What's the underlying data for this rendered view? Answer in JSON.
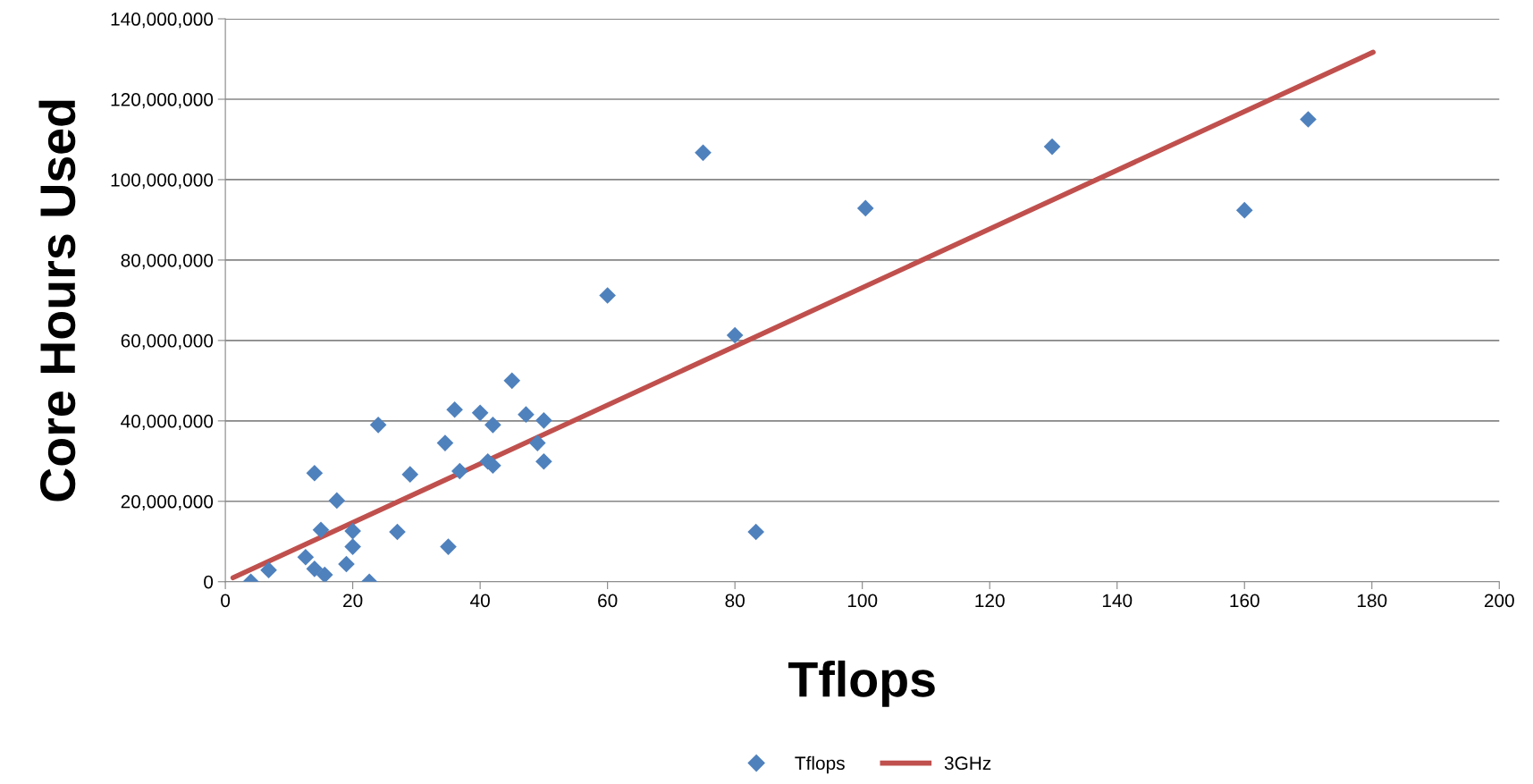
{
  "chart_data": {
    "type": "scatter",
    "xlabel": "Tflops",
    "ylabel": "Core Hours Used",
    "xlim": [
      0,
      200
    ],
    "xticks": [
      0,
      20,
      40,
      60,
      80,
      100,
      120,
      140,
      160,
      180,
      200
    ],
    "ylim": [
      0,
      140000000
    ],
    "yticks": [
      0,
      {
        "value": 20000000,
        "label": "20,000,000"
      },
      {
        "value": 40000000,
        "label": "40,000,000"
      },
      {
        "value": 60000000,
        "label": "60,000,000"
      },
      {
        "value": 80000000,
        "label": "80,000,000"
      },
      {
        "value": 100000000,
        "label": "100,000,000"
      },
      {
        "value": 120000000,
        "label": "120,000,000"
      },
      {
        "value": 140000000,
        "label": "140,000,000"
      }
    ],
    "grid": "y",
    "legend": "bottom",
    "marker": "diamond",
    "series": [
      {
        "name": "Tflops",
        "color": "#4f81bd",
        "x": [
          4,
          6.8,
          12.6,
          14,
          14,
          15,
          15.6,
          17.5,
          19,
          20,
          20,
          22.6,
          24,
          27,
          29,
          34.5,
          35,
          36,
          36.8,
          40,
          41.2,
          42,
          42,
          45,
          47.2,
          49,
          50,
          50,
          60,
          75,
          80,
          83.3,
          100.5,
          129.8,
          160,
          170
        ],
        "values": [
          0,
          2900000,
          6100000,
          27000000,
          3200000,
          12900000,
          1700000,
          20200000,
          4400000,
          12600000,
          8700000,
          0,
          39000000,
          12400000,
          26700000,
          34500000,
          8700000,
          42800000,
          27500000,
          42000000,
          29900000,
          39000000,
          28900000,
          50000000,
          41600000,
          34500000,
          40100000,
          29900000,
          71200000,
          106700000,
          61300000,
          12400000,
          92900000,
          108200000,
          92400000,
          115000000
        ]
      },
      {
        "name": "3GHz",
        "color": "#c0504d",
        "type": "line",
        "marker": "none",
        "x": [
          1.2,
          180.2
        ],
        "values": [
          1000000,
          131700000
        ]
      }
    ]
  }
}
